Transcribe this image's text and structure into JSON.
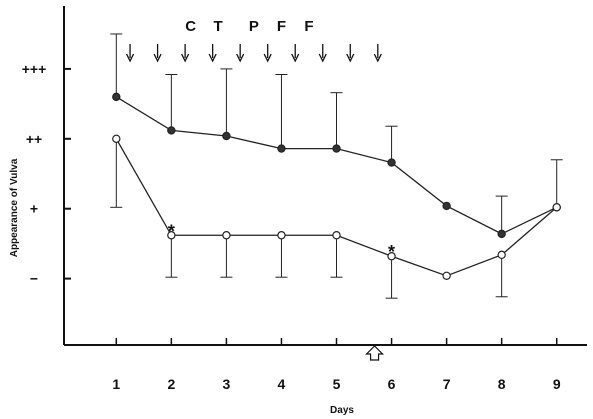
{
  "chart_data": {
    "type": "line",
    "title": "",
    "xlabel": "Days",
    "ylabel": "Appearance of Vulva",
    "categories": [
      "1",
      "2",
      "3",
      "4",
      "5",
      "6",
      "7",
      "8",
      "9"
    ],
    "x": [
      1,
      2,
      3,
      4,
      5,
      6,
      7,
      8,
      9
    ],
    "xlim": [
      0.05,
      9.55
    ],
    "ylim": [
      -0.95,
      3.9
    ],
    "y_ticks": [
      {
        "value": 0,
        "label": "−"
      },
      {
        "value": 1,
        "label": "+"
      },
      {
        "value": 2,
        "label": "++"
      },
      {
        "value": 3,
        "label": "+++"
      }
    ],
    "series": [
      {
        "marker": "filled-circle",
        "color": "#333333",
        "values": [
          2.6,
          2.12,
          2.04,
          1.86,
          1.86,
          1.66,
          1.04,
          0.64,
          1.02
        ],
        "error_up": [
          0.9,
          0.8,
          0.96,
          1.06,
          0.8,
          0.52,
          0,
          0.54,
          0.68
        ],
        "error_down": [
          0,
          0,
          0,
          0,
          0,
          0,
          0,
          0,
          0
        ]
      },
      {
        "marker": "open-circle",
        "color": "#ffffff",
        "values": [
          2.0,
          0.62,
          0.62,
          0.62,
          0.62,
          0.32,
          0.04,
          0.34,
          1.02
        ],
        "error_up": [
          0,
          0,
          0,
          0,
          0,
          0,
          0,
          0,
          0
        ],
        "error_down": [
          0.98,
          0.6,
          0.6,
          0.6,
          0.6,
          0.6,
          0,
          0.6,
          0
        ]
      }
    ],
    "annotations": [
      {
        "text": "*",
        "x": 2,
        "y": 0.62
      },
      {
        "text": "*",
        "x": 6,
        "y": 0.32
      }
    ],
    "top_labels": {
      "letters": [
        "C",
        "T",
        "P",
        "F",
        "F"
      ],
      "positions": [
        2.35,
        2.85,
        3.5,
        4.0,
        4.5
      ]
    },
    "down_arrows_at": [
      1.25,
      1.75,
      2.25,
      2.75,
      3.25,
      3.75,
      4.25,
      4.75,
      5.25,
      5.75
    ],
    "up_arrow_at": 6,
    "grid": false
  }
}
